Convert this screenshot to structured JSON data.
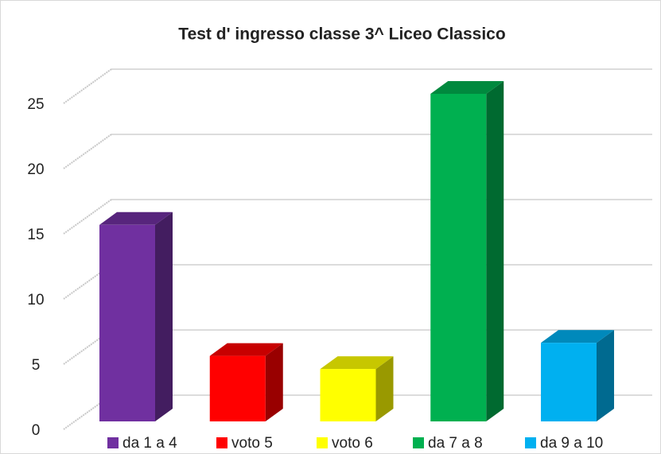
{
  "chart_data": {
    "type": "bar3d",
    "title": "Test d' ingresso classe 3^ Liceo Classico",
    "categories": [
      "da 1 a 4",
      "voto 5",
      "voto 6",
      "da 7 a 8",
      "da 9 a 10"
    ],
    "values": [
      15,
      5,
      4,
      25,
      6
    ],
    "colors": [
      "#7030a0",
      "#ff0000",
      "#ffff00",
      "#00b050",
      "#00b0f0"
    ],
    "ylim": [
      0,
      25
    ],
    "yticks": [
      0,
      5,
      10,
      15,
      20,
      25
    ],
    "grid": true,
    "legend": "bottom"
  }
}
